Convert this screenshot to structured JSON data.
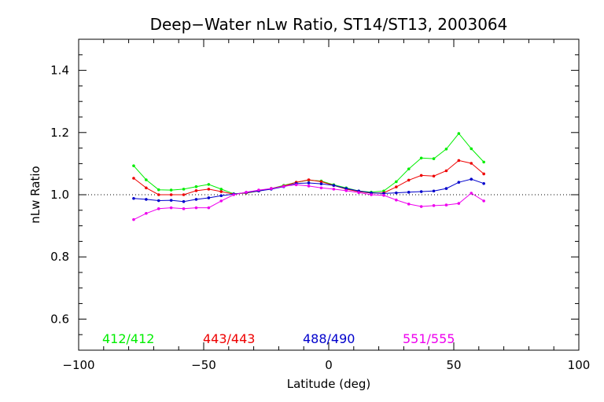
{
  "chart_data": {
    "type": "line",
    "title": "Deep−Water nLw Ratio, ST14/ST13, 2003064",
    "xlabel": "Latitude (deg)",
    "ylabel": "nLw Ratio",
    "xlim": [
      -100,
      100
    ],
    "ylim": [
      0.5,
      1.5
    ],
    "xticks": [
      -100,
      -50,
      0,
      50,
      100
    ],
    "xtick_labels": [
      "−100",
      "−50",
      "0",
      "50",
      "100"
    ],
    "yticks": [
      0.6,
      0.8,
      1.0,
      1.2,
      1.4
    ],
    "ytick_labels": [
      "0.6",
      "0.8",
      "1.0",
      "1.2",
      "1.4"
    ],
    "reference_line": 1.0,
    "grid": false,
    "legend_placement": "bottom",
    "x": [
      -78,
      -73,
      -68,
      -63,
      -58,
      -53,
      -48,
      -43,
      -38,
      -33,
      -28,
      -23,
      -18,
      -13,
      -8,
      -3,
      2,
      7,
      12,
      17,
      22,
      27,
      32,
      37,
      42,
      47,
      52,
      57,
      62
    ],
    "series": [
      {
        "name": "412/412",
        "color": "#00ee00",
        "values": [
          1.093,
          1.048,
          1.016,
          1.015,
          1.018,
          1.026,
          1.033,
          1.018,
          1.003,
          1.005,
          1.012,
          1.02,
          1.03,
          1.04,
          1.047,
          1.044,
          1.032,
          1.022,
          1.012,
          1.008,
          1.012,
          1.042,
          1.083,
          1.118,
          1.116,
          1.147,
          1.197,
          1.148,
          1.105
        ]
      },
      {
        "name": "443/443",
        "color": "#ee0000",
        "values": [
          1.053,
          1.022,
          1.0,
          1.0,
          1.0,
          1.013,
          1.018,
          1.01,
          1.002,
          1.006,
          1.012,
          1.02,
          1.028,
          1.04,
          1.048,
          1.042,
          1.03,
          1.018,
          1.01,
          1.005,
          1.006,
          1.025,
          1.047,
          1.062,
          1.06,
          1.077,
          1.11,
          1.101,
          1.067
        ]
      },
      {
        "name": "488/490",
        "color": "#0000cc",
        "values": [
          0.988,
          0.985,
          0.981,
          0.982,
          0.978,
          0.985,
          0.99,
          0.997,
          1.002,
          1.007,
          1.012,
          1.018,
          1.026,
          1.036,
          1.038,
          1.035,
          1.03,
          1.02,
          1.012,
          1.006,
          1.004,
          1.006,
          1.008,
          1.01,
          1.012,
          1.02,
          1.04,
          1.05,
          1.036
        ]
      },
      {
        "name": "551/555",
        "color": "#ee00ee",
        "values": [
          0.92,
          0.94,
          0.955,
          0.958,
          0.955,
          0.958,
          0.958,
          0.98,
          1.0,
          1.008,
          1.015,
          1.02,
          1.027,
          1.032,
          1.028,
          1.022,
          1.018,
          1.013,
          1.007,
          1.0,
          0.998,
          0.983,
          0.97,
          0.962,
          0.965,
          0.967,
          0.972,
          1.005,
          0.98
        ]
      }
    ]
  }
}
